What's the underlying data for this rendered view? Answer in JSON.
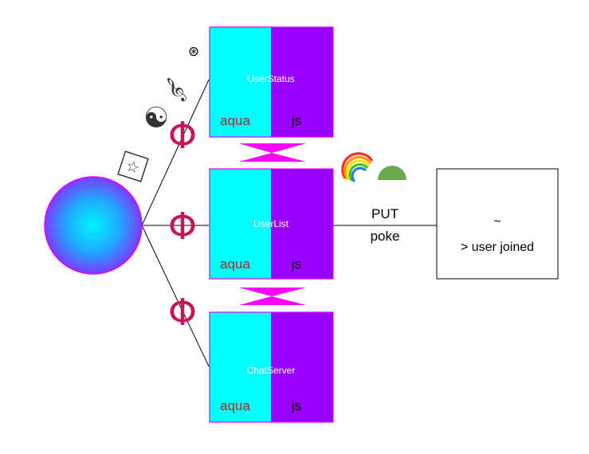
{
  "colors": {
    "aqua": "#00ffff",
    "js": "#9900ff",
    "border": "#e100ff",
    "phi": "#c2185b",
    "bowtie": "#ff00ff",
    "sphere_center": "#00ffff",
    "sphere_edge": "#7b3cff",
    "green": "#6aa84f"
  },
  "nodes": [
    {
      "id": "userstatus",
      "title": "UserStatus",
      "left_label": "aqua",
      "right_label": "js"
    },
    {
      "id": "userlist",
      "title": "UserList",
      "left_label": "aqua",
      "right_label": "js"
    },
    {
      "id": "chatserver",
      "title": "ChatServer",
      "left_label": "aqua",
      "right_label": "js"
    }
  ],
  "edge": {
    "method": "PUT",
    "action": "poke"
  },
  "output": {
    "line1": "~",
    "line2": "> user joined"
  },
  "glyphs": {
    "phi": "Φ",
    "star_card": "☆",
    "yin_yang": "☯",
    "treble_clef": "𝄞",
    "circled_asterisk": "⊛"
  },
  "icons": [
    "sphere-icon",
    "star-card-icon",
    "yin-yang-icon",
    "treble-clef-icon",
    "circled-asterisk-icon",
    "rainbow-icon",
    "green-semicircle-icon"
  ]
}
